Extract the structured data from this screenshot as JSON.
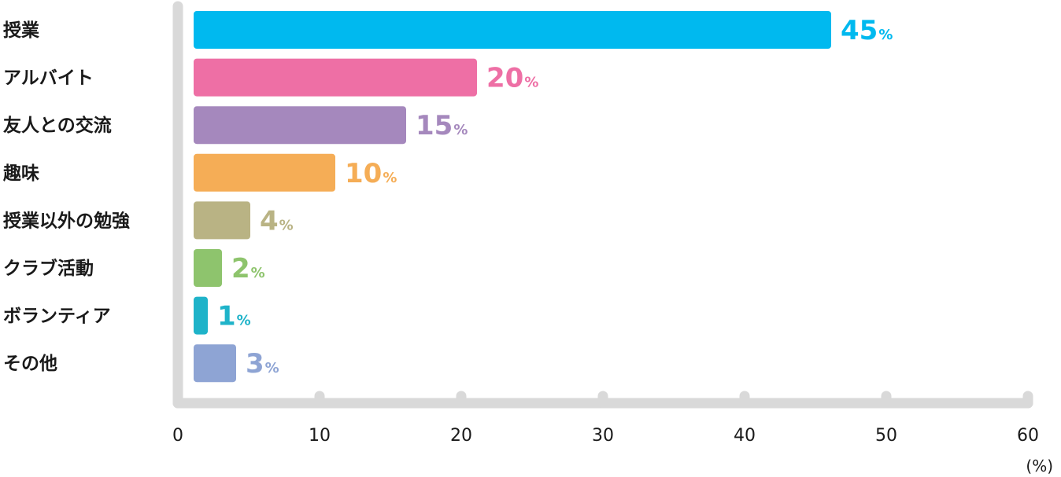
{
  "chart_data": {
    "type": "bar",
    "orientation": "horizontal",
    "categories": [
      "授業",
      "アルバイト",
      "友人との交流",
      "趣味",
      "授業以外の勉強",
      "クラブ活動",
      "ボランティア",
      "その他"
    ],
    "values": [
      45,
      20,
      15,
      10,
      4,
      2,
      1,
      3
    ],
    "value_label_suffix": "%",
    "colors": [
      "#00b9ef",
      "#ee6fa5",
      "#a588bd",
      "#f5ad56",
      "#b9b384",
      "#8ec46d",
      "#1fb3c9",
      "#8ea4d4"
    ],
    "xlim": [
      0,
      60
    ],
    "x_ticks": [
      "0",
      "10",
      "20",
      "30",
      "40",
      "50",
      "60"
    ],
    "x_unit": "(%)",
    "axis_color": "#d9d9d9",
    "grid": false
  }
}
